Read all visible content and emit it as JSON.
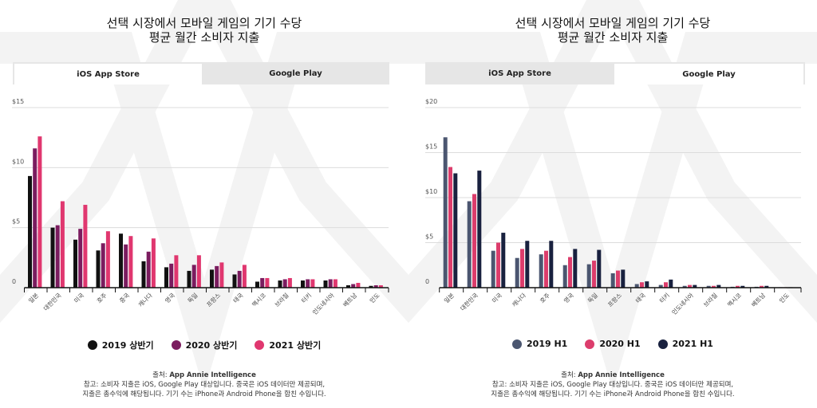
{
  "panels": [
    {
      "title_line1": "선택 시장에서 모바일 게임의 기기 수당",
      "title_line2": "평균 월간 소비자 지출",
      "tabs": [
        {
          "label": "iOS App Store",
          "active": true
        },
        {
          "label": "Google Play",
          "active": false
        }
      ],
      "legend": [
        {
          "label": "2019 상반기",
          "color": "#111111"
        },
        {
          "label": "2020 상반기",
          "color": "#7b1c5f"
        },
        {
          "label": "2021 상반기",
          "color": "#e0376f"
        }
      ],
      "source_label": "출처: ",
      "source_value": "App Annie Intelligence",
      "note_line1": "참고: 소비자 지출은 iOS, Google Play 대상입니다. 중국은 iOS 데이터만 제공되며,",
      "note_line2": "지출은 총수익에 해당됩니다. 기기 수는 iPhone과 Android Phone을 합친 수입니다."
    },
    {
      "title_line1": "선택 시장에서 모바일 게임의 기기 수당",
      "title_line2": "평균 월간 소비자 지출",
      "tabs": [
        {
          "label": "iOS App Store",
          "active": false
        },
        {
          "label": "Google Play",
          "active": true
        }
      ],
      "legend": [
        {
          "label": "2019 H1",
          "color": "#4b5670"
        },
        {
          "label": "2020 H1",
          "color": "#dc3d6c"
        },
        {
          "label": "2021 H1",
          "color": "#19213f"
        }
      ],
      "source_label": "출처: ",
      "source_value": "App Annie Intelligence",
      "note_line1": "참고: 소비자 지출은 iOS, Google Play 대상입니다. 중국은 iOS 데이터만 제공되며,",
      "note_line2": "지출은 총수익에 해당됩니다. 기기 수는 iPhone과 Android Phone을 합친 수입니다."
    }
  ],
  "chart_data": [
    {
      "type": "bar",
      "title": "선택 시장에서 모바일 게임의 기기 수당 평균 월간 소비자 지출 (iOS App Store)",
      "categories": [
        "일본",
        "대한민국",
        "미국",
        "호주",
        "중국",
        "캐나다",
        "영국",
        "독일",
        "프랑스",
        "태국",
        "멕시코",
        "브라질",
        "터키",
        "인도네시아",
        "베트남",
        "인도"
      ],
      "series": [
        {
          "name": "2019 상반기",
          "color": "#111111",
          "values": [
            9.3,
            5.0,
            4.0,
            3.1,
            4.5,
            2.2,
            1.7,
            1.4,
            1.5,
            1.1,
            0.5,
            0.6,
            0.6,
            0.6,
            0.2,
            0.15
          ]
        },
        {
          "name": "2020 상반기",
          "color": "#7b1c5f",
          "values": [
            11.6,
            5.2,
            4.9,
            3.7,
            3.6,
            3.0,
            2.0,
            1.9,
            1.8,
            1.4,
            0.8,
            0.7,
            0.7,
            0.7,
            0.3,
            0.2
          ]
        },
        {
          "name": "2021 상반기",
          "color": "#e0376f",
          "values": [
            12.6,
            7.2,
            6.9,
            4.7,
            4.3,
            4.1,
            2.7,
            2.7,
            2.1,
            1.9,
            0.8,
            0.8,
            0.7,
            0.7,
            0.4,
            0.2
          ]
        }
      ],
      "yticks": [
        {
          "value": 0,
          "label": "0"
        },
        {
          "value": 5,
          "label": "$5"
        },
        {
          "value": 10,
          "label": "$10"
        },
        {
          "value": 15,
          "label": "$15"
        }
      ],
      "ylim": [
        0,
        15
      ],
      "grid": true,
      "legend": "bottom",
      "xlabel": "",
      "ylabel": ""
    },
    {
      "type": "bar",
      "title": "선택 시장에서 모바일 게임의 기기 수당 평균 월간 소비자 지출 (Google Play)",
      "categories": [
        "일본",
        "대한민국",
        "미국",
        "캐나다",
        "호주",
        "영국",
        "독일",
        "프랑스",
        "태국",
        "터키",
        "인도네시아",
        "브라질",
        "멕시코",
        "베트남",
        "인도"
      ],
      "series": [
        {
          "name": "2019 H1",
          "color": "#4b5670",
          "values": [
            16.7,
            9.6,
            4.1,
            3.3,
            3.7,
            2.5,
            2.6,
            1.6,
            0.4,
            0.3,
            0.2,
            0.2,
            0.1,
            0.1,
            0.05
          ]
        },
        {
          "name": "2020 H1",
          "color": "#dc3d6c",
          "values": [
            13.4,
            10.4,
            5.0,
            4.3,
            4.1,
            3.4,
            3.0,
            1.9,
            0.6,
            0.6,
            0.3,
            0.2,
            0.2,
            0.2,
            0.05
          ]
        },
        {
          "name": "2021 H1",
          "color": "#19213f",
          "values": [
            12.7,
            13.0,
            6.1,
            5.2,
            5.2,
            4.3,
            4.2,
            2.0,
            0.7,
            0.9,
            0.3,
            0.3,
            0.2,
            0.2,
            0.05
          ]
        }
      ],
      "yticks": [
        {
          "value": 0,
          "label": "0"
        },
        {
          "value": 5,
          "label": "$5"
        },
        {
          "value": 10,
          "label": "$10"
        },
        {
          "value": 15,
          "label": "$15"
        },
        {
          "value": 20,
          "label": "$20"
        }
      ],
      "ylim": [
        0,
        20
      ],
      "grid": true,
      "legend": "bottom",
      "xlabel": "",
      "ylabel": ""
    }
  ]
}
